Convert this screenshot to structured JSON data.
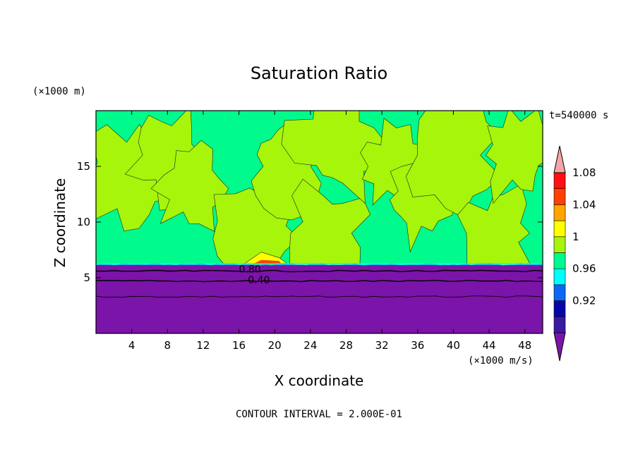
{
  "chart_data": {
    "type": "heatmap",
    "title": "Saturation Ratio",
    "xlabel": "X coordinate",
    "ylabel": "Z coordinate",
    "x_unit": "(×1000 m/s)",
    "y_unit": "(×1000 m)",
    "time_label": "t=540000 s",
    "footer": "CONTOUR INTERVAL = 2.000E-01",
    "xlim": [
      0,
      50
    ],
    "ylim": [
      0,
      20
    ],
    "x_ticks": [
      4,
      8,
      12,
      16,
      20,
      24,
      28,
      32,
      36,
      40,
      44,
      48
    ],
    "y_ticks": [
      5,
      10,
      15
    ],
    "contour_labels": [
      {
        "text": "0.80",
        "x": 16.0,
        "y": 5.8
      },
      {
        "text": "0.40",
        "x": 17.0,
        "y": 4.8
      }
    ],
    "colorbar": {
      "tick_labels": [
        "0.92",
        "0.96",
        "1",
        "1.04",
        "1.08"
      ],
      "levels": [
        {
          "color": "#7b14a8"
        },
        {
          "color": "#3c1aa0"
        },
        {
          "color": "#0606a8"
        },
        {
          "color": "#0a68f5"
        },
        {
          "color": "#00ffff"
        },
        {
          "color": "#00fa8c"
        },
        {
          "color": "#a6f50a"
        },
        {
          "color": "#ffff00"
        },
        {
          "color": "#ffa500"
        },
        {
          "color": "#ff4000"
        },
        {
          "color": "#ff0f0f"
        },
        {
          "color": "#f4a6a6"
        }
      ]
    },
    "regions": {
      "below_cloud_color": "#7b14a8",
      "saturated_color": "#00fa8c",
      "supersaturated_color": "#a6f50a",
      "peak_color": "#ffff00",
      "layer_top_z": 6.2
    }
  }
}
